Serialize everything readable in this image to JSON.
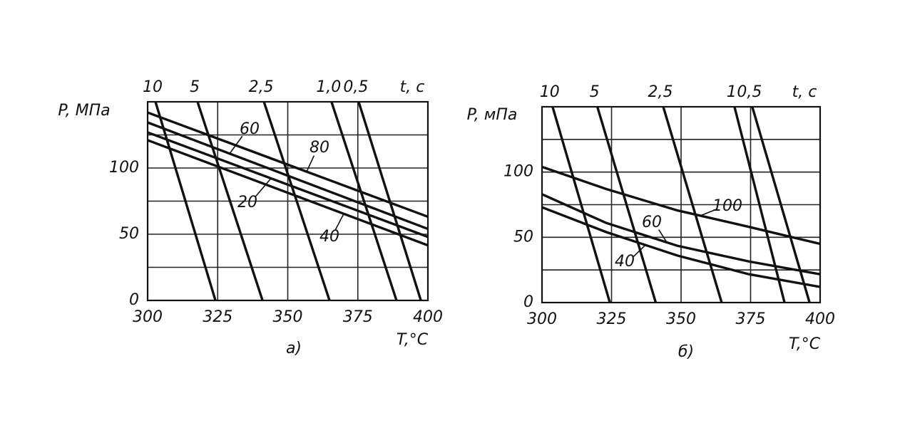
{
  "chart_data": [
    {
      "type": "line",
      "subtitle": "а)",
      "ylabel": "P, МПа",
      "xlabel": "T,°C",
      "time_label": "t, c",
      "xlim": [
        300,
        400
      ],
      "xticks": [
        300,
        325,
        350,
        375,
        400
      ],
      "ylim": [
        0,
        150
      ],
      "yticks": [
        0,
        50,
        100
      ],
      "grid_step": 25,
      "color": "#111111",
      "time_lines": [
        {
          "name": "10",
          "x": [
            302.8,
            324.2
          ],
          "values": [
            150,
            0
          ]
        },
        {
          "name": "5",
          "x": [
            317.8,
            341.0
          ],
          "values": [
            150,
            0
          ]
        },
        {
          "name": "2,5",
          "x": [
            341.5,
            364.9
          ],
          "values": [
            150,
            0
          ]
        },
        {
          "name": "1,0",
          "x": [
            365.6,
            388.8
          ],
          "values": [
            150,
            0
          ]
        },
        {
          "name": "0,5",
          "x": [
            375.3,
            397.5
          ],
          "values": [
            150,
            0
          ]
        }
      ],
      "series": [
        {
          "name": "80",
          "x": [
            300,
            400
          ],
          "values": [
            141.9,
            63.2
          ]
        },
        {
          "name": "60",
          "x": [
            300,
            400
          ],
          "values": [
            134.4,
            54
          ]
        },
        {
          "name": "20",
          "x": [
            300,
            400
          ],
          "values": [
            126.9,
            48
          ]
        },
        {
          "name": "40",
          "x": [
            300,
            400
          ],
          "values": [
            121,
            41.6
          ]
        }
      ]
    },
    {
      "type": "line",
      "subtitle": "б)",
      "ylabel": "P, мПа",
      "xlabel": "T,°C",
      "time_label": "t, c",
      "xlim": [
        300,
        400
      ],
      "xticks": [
        300,
        325,
        350,
        375,
        400
      ],
      "ylim": [
        0,
        150
      ],
      "yticks": [
        0,
        50,
        100
      ],
      "grid_step": 25,
      "color": "#111111",
      "time_lines": [
        {
          "name": "10",
          "x": [
            303.8,
            324.4
          ],
          "values": [
            150,
            0
          ]
        },
        {
          "name": "5",
          "x": [
            319.9,
            340.9
          ],
          "values": [
            150,
            0
          ]
        },
        {
          "name": "2,5",
          "x": [
            343.6,
            364.6
          ],
          "values": [
            150,
            0
          ]
        },
        {
          "name": "1",
          "x": [
            369.2,
            387.2
          ],
          "values": [
            150,
            0
          ]
        },
        {
          "name": "0,5",
          "x": [
            375.6,
            396.2
          ],
          "values": [
            150,
            0
          ]
        }
      ],
      "series": [
        {
          "name": "100",
          "x": [
            300,
            323.1,
            348.7,
            374.4,
            400
          ],
          "values": [
            104,
            87,
            70.6,
            58,
            45
          ]
        },
        {
          "name": "60",
          "x": [
            300,
            323.1,
            348.7,
            374.4,
            400
          ],
          "values": [
            83,
            61,
            43.5,
            31.5,
            21.7
          ]
        },
        {
          "name": "40",
          "x": [
            300,
            323.1,
            348.7,
            374.4,
            400
          ],
          "values": [
            73,
            54,
            36,
            21.7,
            12
          ]
        }
      ]
    }
  ]
}
